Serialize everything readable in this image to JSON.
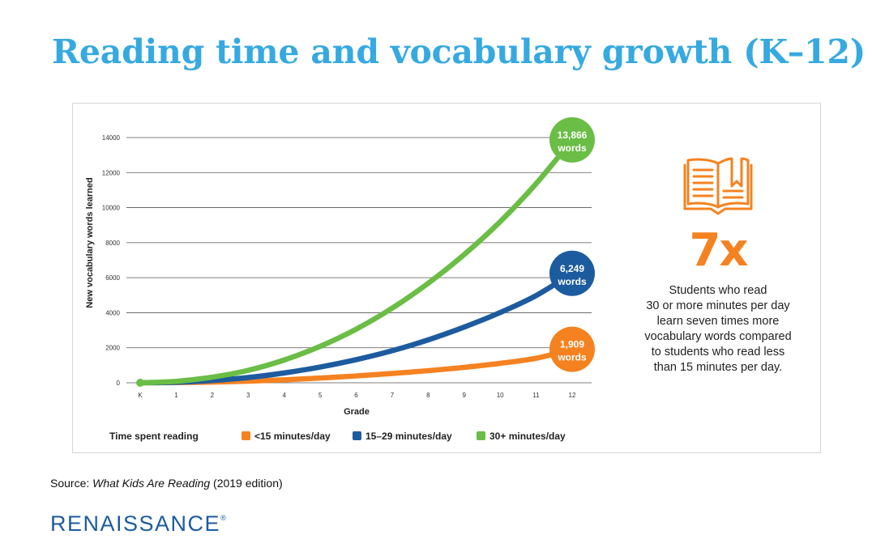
{
  "title": "Reading time and vocabulary growth (K–12)",
  "colors": {
    "title": "#36a9e1",
    "orange": "#f58220",
    "blue": "#1d5b9f",
    "green": "#6abd45",
    "brand": "#1d5b9f",
    "grid": "#555555"
  },
  "chart_data": {
    "type": "line",
    "title": "",
    "xlabel": "Grade",
    "ylabel": "New vocabulary words learned",
    "categories": [
      "K",
      "1",
      "2",
      "3",
      "4",
      "5",
      "6",
      "7",
      "8",
      "9",
      "10",
      "11",
      "12"
    ],
    "ylim": [
      0,
      14000
    ],
    "yticks": [
      0,
      2000,
      4000,
      6000,
      8000,
      10000,
      12000,
      14000
    ],
    "grid": true,
    "legend_title": "Time spent reading",
    "legend_position": "bottom",
    "series": [
      {
        "name": "<15 minutes/day",
        "color": "#f58220",
        "values": [
          0,
          10,
          40,
          95,
          170,
          270,
          390,
          530,
          690,
          880,
          1110,
          1400,
          1909
        ],
        "end_label": [
          "1,909",
          "words"
        ]
      },
      {
        "name": "15–29 minutes/day",
        "color": "#1d5b9f",
        "values": [
          0,
          30,
          130,
          300,
          560,
          900,
          1320,
          1830,
          2450,
          3180,
          4010,
          4980,
          6249
        ],
        "end_label": [
          "6,249",
          "words"
        ]
      },
      {
        "name": "30+ minutes/day",
        "color": "#6abd45",
        "values": [
          0,
          80,
          320,
          710,
          1300,
          2080,
          3060,
          4260,
          5680,
          7320,
          9200,
          11370,
          13866
        ],
        "end_label": [
          "13,866",
          "words"
        ]
      }
    ]
  },
  "sidebar": {
    "icon": "open-book-icon",
    "multiplier": "7x",
    "lines": [
      "Students who read",
      "30 or more minutes per day",
      "learn seven times more",
      "vocabulary words compared",
      "to students who read less",
      "than 15 minutes per day."
    ]
  },
  "source": {
    "prefix": "Source: ",
    "work": "What Kids Are Reading",
    "suffix": " (2019 edition)"
  },
  "brand": {
    "name": "RENAISSANCE",
    "mark": "®"
  }
}
